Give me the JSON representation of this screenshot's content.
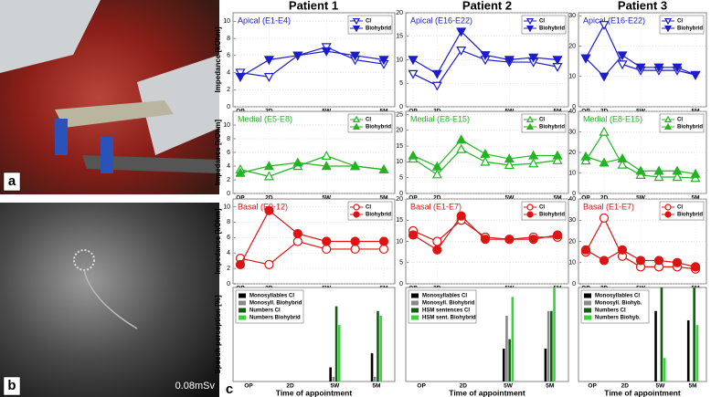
{
  "patients": [
    "Patient 1",
    "Patient 2",
    "Patient 3"
  ],
  "panel_labels": {
    "a": "a",
    "b": "b",
    "c": "c"
  },
  "dose": "0.08mSv",
  "chart_data": [
    {
      "type": "line",
      "title": "Apical (E1-E4)",
      "ylabel": "Impedance [kOhm]",
      "categories": [
        "OP",
        "2D",
        null,
        "5W",
        null,
        "5M"
      ],
      "ylim": [
        0,
        11
      ],
      "yticks": [
        0,
        2,
        4,
        6,
        8,
        10
      ],
      "grid": true,
      "legend": "upper right",
      "series": [
        {
          "name": "CI",
          "color": "#1c1cc8",
          "marker": "triangle-down",
          "filled": false,
          "values": [
            4,
            3.5,
            6,
            7,
            5.5,
            5
          ]
        },
        {
          "name": "Biohybrid",
          "color": "#1c1cc8",
          "marker": "triangle-down",
          "filled": true,
          "values": [
            3.5,
            5.5,
            6,
            6.5,
            6,
            5.5
          ]
        }
      ]
    },
    {
      "type": "line",
      "title": "Apical (E16-E22)",
      "categories": [
        "OP",
        "2D",
        null,
        null,
        "5W",
        null,
        "5M"
      ],
      "ylim": [
        0,
        20
      ],
      "yticks": [
        0,
        5,
        10,
        15,
        20
      ],
      "grid": true,
      "legend": "upper right",
      "series": [
        {
          "name": "CI",
          "color": "#1c1cc8",
          "marker": "triangle-down",
          "filled": false,
          "values": [
            7,
            4.5,
            12,
            10,
            9.5,
            9.5,
            8.5
          ]
        },
        {
          "name": "Biohybrid",
          "color": "#1c1cc8",
          "marker": "triangle-down",
          "filled": true,
          "values": [
            10,
            7,
            16,
            11,
            10,
            10.5,
            10
          ]
        }
      ]
    },
    {
      "type": "line",
      "title": "Apical (E16-E22)",
      "categories": [
        "OP",
        "2D",
        null,
        "5W",
        null,
        null,
        "5M"
      ],
      "ylim": [
        0,
        31
      ],
      "yticks": [
        0,
        10,
        20,
        30
      ],
      "grid": true,
      "legend": "upper right",
      "series": [
        {
          "name": "CI",
          "color": "#1c1cc8",
          "marker": "triangle-down",
          "filled": false,
          "values": [
            16,
            27,
            14,
            12,
            12,
            12,
            10.5
          ]
        },
        {
          "name": "Biohybrid",
          "color": "#1c1cc8",
          "marker": "triangle-down",
          "filled": true,
          "values": [
            16,
            10,
            17,
            13,
            13,
            13,
            10.5
          ]
        }
      ]
    },
    {
      "type": "line",
      "title": "Medial (E5-E8)",
      "ylabel": "Impedance [kOhm]",
      "categories": [
        "OP",
        "2D",
        null,
        "5W",
        null,
        "5M"
      ],
      "ylim": [
        0,
        12
      ],
      "yticks": [
        0,
        2,
        4,
        6,
        8,
        10
      ],
      "grid": true,
      "legend": "upper right",
      "series": [
        {
          "name": "CI",
          "color": "#22b422",
          "marker": "triangle-up",
          "filled": false,
          "values": [
            3.5,
            2.5,
            4,
            5.5,
            4,
            3.5
          ]
        },
        {
          "name": "Biohybrid",
          "color": "#22b422",
          "marker": "triangle-up",
          "filled": true,
          "values": [
            3,
            4,
            4.5,
            4,
            4,
            3.5
          ]
        }
      ]
    },
    {
      "type": "line",
      "title": "Medial (E8-E15)",
      "categories": [
        "OP",
        "2D",
        null,
        null,
        "5W",
        null,
        "5M"
      ],
      "ylim": [
        0,
        26
      ],
      "yticks": [
        0,
        5,
        10,
        15,
        20,
        25
      ],
      "grid": true,
      "legend": "upper right",
      "series": [
        {
          "name": "CI",
          "color": "#22b422",
          "marker": "triangle-up",
          "filled": false,
          "values": [
            11,
            6,
            14,
            10,
            9,
            9.5,
            10.5
          ]
        },
        {
          "name": "Biohybrid",
          "color": "#22b422",
          "marker": "triangle-up",
          "filled": true,
          "values": [
            12,
            8.5,
            17,
            12.5,
            11,
            12,
            12
          ]
        }
      ]
    },
    {
      "type": "line",
      "title": "Medial (E8-E15)",
      "categories": [
        "OP",
        "2D",
        null,
        "5W",
        null,
        null,
        "5M"
      ],
      "ylim": [
        0,
        40
      ],
      "yticks": [
        0,
        10,
        20,
        30,
        40
      ],
      "grid": true,
      "legend": "upper right",
      "series": [
        {
          "name": "CI",
          "color": "#22b422",
          "marker": "triangle-up",
          "filled": false,
          "values": [
            16,
            30,
            14,
            9,
            8,
            8,
            7.5
          ]
        },
        {
          "name": "Biohybrid",
          "color": "#22b422",
          "marker": "triangle-up",
          "filled": true,
          "values": [
            18,
            15,
            17,
            11,
            11,
            11,
            9.5
          ]
        }
      ]
    },
    {
      "type": "line",
      "title": "Basal (E9-12)",
      "ylabel": "Impedance [kOhm]",
      "categories": [
        "OP",
        "2D",
        null,
        "5W",
        null,
        "5M"
      ],
      "ylim": [
        0,
        11
      ],
      "yticks": [
        0,
        2,
        4,
        6,
        8,
        10
      ],
      "grid": true,
      "legend": "upper right",
      "series": [
        {
          "name": "CI",
          "color": "#dc1414",
          "marker": "circle",
          "filled": false,
          "values": [
            3.3,
            2.5,
            5.5,
            4.5,
            4.5,
            4.5
          ]
        },
        {
          "name": "Biohybrid",
          "color": "#dc1414",
          "marker": "circle",
          "filled": true,
          "values": [
            2.5,
            9.5,
            6.5,
            5.5,
            5.5,
            5.5
          ]
        }
      ]
    },
    {
      "type": "line",
      "title": "Basal (E1-E7)",
      "categories": [
        "OP",
        "2D",
        null,
        null,
        "5W",
        null,
        "5M"
      ],
      "ylim": [
        0,
        20
      ],
      "yticks": [
        0,
        5,
        10,
        15,
        20
      ],
      "grid": true,
      "legend": "upper right",
      "series": [
        {
          "name": "CI",
          "color": "#dc1414",
          "marker": "circle",
          "filled": false,
          "values": [
            12.5,
            10,
            15,
            11,
            10.5,
            11,
            11
          ]
        },
        {
          "name": "Biohybrid",
          "color": "#dc1414",
          "marker": "circle",
          "filled": true,
          "values": [
            11.5,
            8,
            16,
            10.5,
            10.5,
            10.5,
            11.5
          ]
        }
      ]
    },
    {
      "type": "line",
      "title": "Basal (E1-E7)",
      "categories": [
        "OP",
        "2D",
        null,
        "5W",
        null,
        null,
        "5M"
      ],
      "ylim": [
        0,
        40
      ],
      "yticks": [
        0,
        10,
        20,
        30,
        40
      ],
      "grid": true,
      "legend": "upper right",
      "series": [
        {
          "name": "CI",
          "color": "#dc1414",
          "marker": "circle",
          "filled": false,
          "values": [
            15,
            31,
            13,
            8,
            8,
            8,
            7
          ]
        },
        {
          "name": "Biohybrid",
          "color": "#dc1414",
          "marker": "circle",
          "filled": true,
          "values": [
            16,
            11,
            16,
            11,
            11,
            10,
            8
          ]
        }
      ]
    },
    {
      "type": "bar",
      "ylabel": "Speech perception [%]",
      "xlabel": "Time of appointment",
      "categories": [
        "OP",
        "2D",
        "5W",
        "5M"
      ],
      "ylim": [
        0,
        100
      ],
      "grid": false,
      "legend": "upper left",
      "series": [
        {
          "name": "Monosyllables CI",
          "color": "#000000",
          "values": [
            null,
            null,
            15,
            30
          ]
        },
        {
          "name": "Monosyll. Biohybrid",
          "color": "#8a8a8a",
          "values": [
            null,
            null,
            5,
            5
          ]
        },
        {
          "name": "Numbers CI",
          "color": "#145a14",
          "values": [
            null,
            null,
            80,
            75
          ]
        },
        {
          "name": "Numbers Biohybrid",
          "color": "#3ad23a",
          "values": [
            null,
            null,
            60,
            70
          ]
        }
      ]
    },
    {
      "type": "bar",
      "xlabel": "Time of appointment",
      "categories": [
        "OP",
        "2D",
        "5W",
        "5M"
      ],
      "ylim": [
        0,
        100
      ],
      "grid": false,
      "legend": "upper left",
      "series": [
        {
          "name": "Monosyllables CI",
          "color": "#000000",
          "values": [
            null,
            null,
            35,
            35
          ]
        },
        {
          "name": "Monosyll. Biohybrid",
          "color": "#8a8a8a",
          "values": [
            null,
            null,
            70,
            75
          ]
        },
        {
          "name": "HSM sentences CI",
          "color": "#145a14",
          "values": [
            null,
            null,
            45,
            75
          ]
        },
        {
          "name": "HSM sent. Biohybrid",
          "color": "#3ad23a",
          "values": [
            null,
            null,
            90,
            100
          ]
        }
      ]
    },
    {
      "type": "bar",
      "xlabel": "Time of appointment",
      "categories": [
        "OP",
        "2D",
        "5W",
        "5M"
      ],
      "ylim": [
        0,
        100
      ],
      "grid": false,
      "legend": "upper left",
      "series": [
        {
          "name": "Monosyllables CI",
          "color": "#000000",
          "values": [
            null,
            null,
            75,
            65
          ]
        },
        {
          "name": "Monosyll. Biohyb.",
          "color": "#8a8a8a",
          "values": [
            null,
            null,
            0,
            0
          ]
        },
        {
          "name": "Numbers CI",
          "color": "#145a14",
          "values": [
            null,
            null,
            100,
            100
          ]
        },
        {
          "name": "Numbers Biohyb.",
          "color": "#3ad23a",
          "values": [
            null,
            null,
            25,
            60
          ]
        }
      ]
    }
  ]
}
